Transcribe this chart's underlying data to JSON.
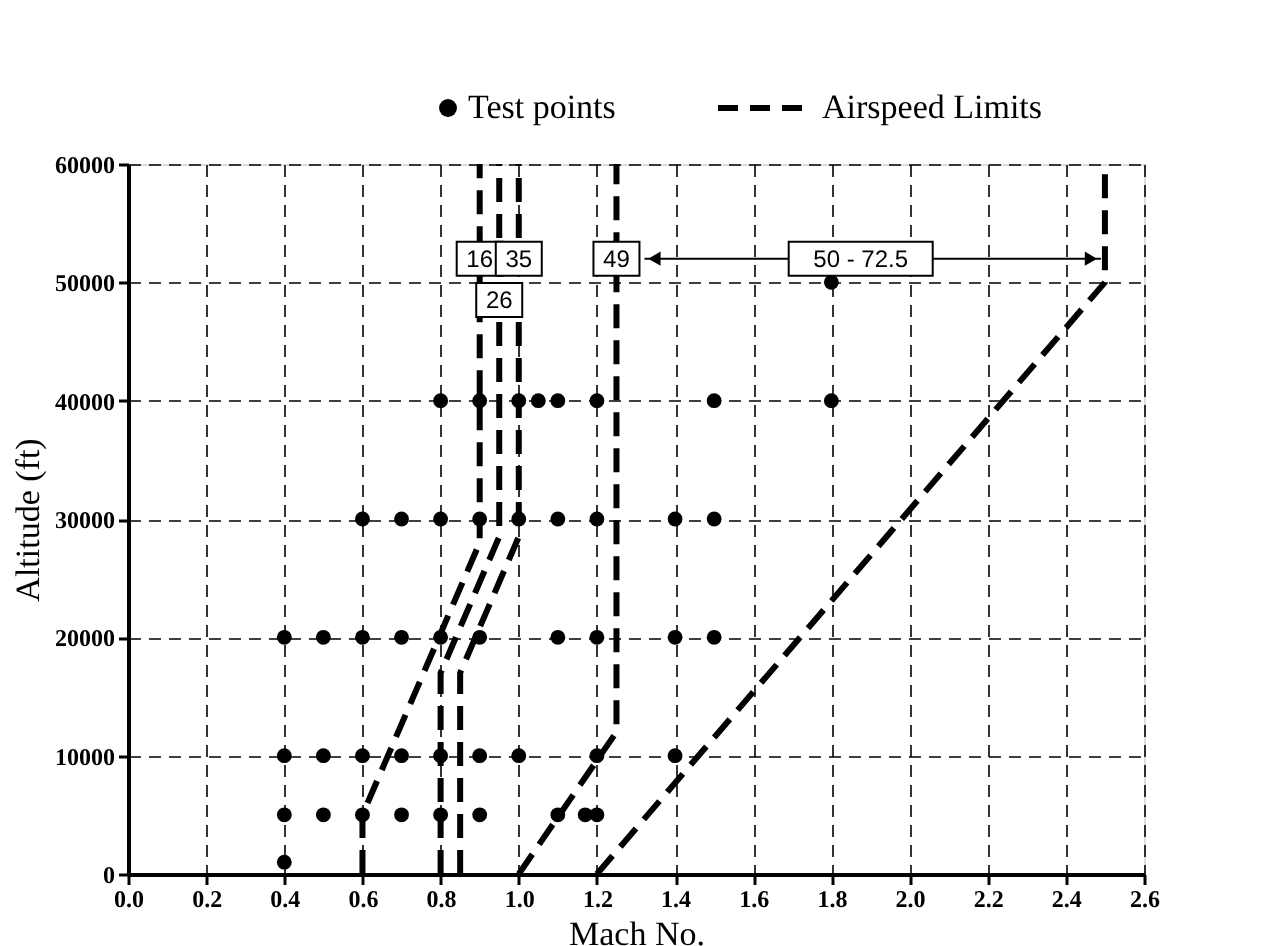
{
  "chart_data": {
    "type": "scatter",
    "xlabel": "Mach No.",
    "ylabel": "Altitude (ft)",
    "xlim": [
      0,
      2.6
    ],
    "xticks": [
      {
        "value": 0,
        "label": "0.0"
      },
      {
        "value": 0.2,
        "label": "0.2"
      },
      {
        "value": 0.4,
        "label": "0.4"
      },
      {
        "value": 0.6,
        "label": "0.6"
      },
      {
        "value": 0.8,
        "label": "0.8"
      },
      {
        "value": 1,
        "label": "1.0"
      },
      {
        "value": 1.2,
        "label": "1.2"
      },
      {
        "value": 1.4,
        "label": "1.4"
      },
      {
        "value": 1.6,
        "label": "1.6"
      },
      {
        "value": 1.8,
        "label": "1.8"
      },
      {
        "value": 2,
        "label": "2.0"
      },
      {
        "value": 2.2,
        "label": "2.2"
      },
      {
        "value": 2.4,
        "label": "2.4"
      },
      {
        "value": 2.6,
        "label": "2.6"
      }
    ],
    "ylim": [
      0,
      60000
    ],
    "yticks": [
      0,
      10000,
      20000,
      30000,
      40000,
      50000,
      60000
    ],
    "grid": true,
    "legend": "top",
    "series": [
      {
        "name": "Test points",
        "marker": "circle",
        "color": "#000000",
        "x": [
          0.4,
          0.4,
          0.5,
          0.6,
          0.7,
          0.8,
          0.9,
          1.1,
          1.17,
          1.2,
          0.4,
          0.5,
          0.6,
          0.7,
          0.8,
          0.9,
          1.0,
          1.2,
          1.4,
          0.4,
          0.5,
          0.6,
          0.7,
          0.8,
          0.9,
          1.1,
          1.2,
          1.4,
          1.5,
          0.6,
          0.7,
          0.8,
          0.9,
          1.0,
          1.1,
          1.2,
          1.4,
          1.5,
          0.8,
          0.9,
          1.0,
          1.05,
          1.1,
          1.2,
          1.5,
          1.8,
          1.8
        ],
        "values": [
          1000,
          5000,
          5000,
          5000,
          5000,
          5000,
          5000,
          5000,
          5000,
          5000,
          10000,
          10000,
          10000,
          10000,
          10000,
          10000,
          10000,
          10000,
          10000,
          20000,
          20000,
          20000,
          20000,
          20000,
          20000,
          20000,
          20000,
          20000,
          20000,
          30000,
          30000,
          30000,
          30000,
          30000,
          30000,
          30000,
          30000,
          30000,
          40000,
          40000,
          40000,
          40000,
          40000,
          40000,
          40000,
          40000,
          50000
        ]
      },
      {
        "name": "Airspeed Limits",
        "type": "line",
        "line_style": "dashed",
        "color": "#000000",
        "x": [
          0.6,
          0.6,
          0.9,
          0.9
        ],
        "values": [
          0,
          5000,
          28000,
          60000
        ]
      },
      {
        "type": "line",
        "line_style": "dashed",
        "color": "#000000",
        "x": [
          0.8,
          0.8,
          0.95,
          0.95
        ],
        "values": [
          0,
          17000,
          28500,
          60000
        ]
      },
      {
        "type": "line",
        "line_style": "dashed",
        "color": "#000000",
        "x": [
          0.85,
          0.85,
          1.0,
          1.0
        ],
        "values": [
          0,
          17000,
          28500,
          60000
        ]
      },
      {
        "type": "line",
        "line_style": "dashed",
        "color": "#000000",
        "x": [
          1.0,
          1.25,
          1.25
        ],
        "values": [
          0,
          12000,
          60000
        ]
      },
      {
        "type": "line",
        "line_style": "dashed",
        "color": "#000000",
        "x": [
          1.2,
          2.5,
          2.5
        ],
        "values": [
          0,
          50000,
          60000
        ]
      }
    ],
    "annotations": [
      {
        "text": "16",
        "x": 0.9,
        "y": 52000
      },
      {
        "text": "35",
        "x": 1.0,
        "y": 52000
      },
      {
        "text": "26",
        "x": 0.95,
        "y": 48500
      },
      {
        "text": "49",
        "x": 1.25,
        "y": 52000
      },
      "50 - 72.5"
    ]
  }
}
